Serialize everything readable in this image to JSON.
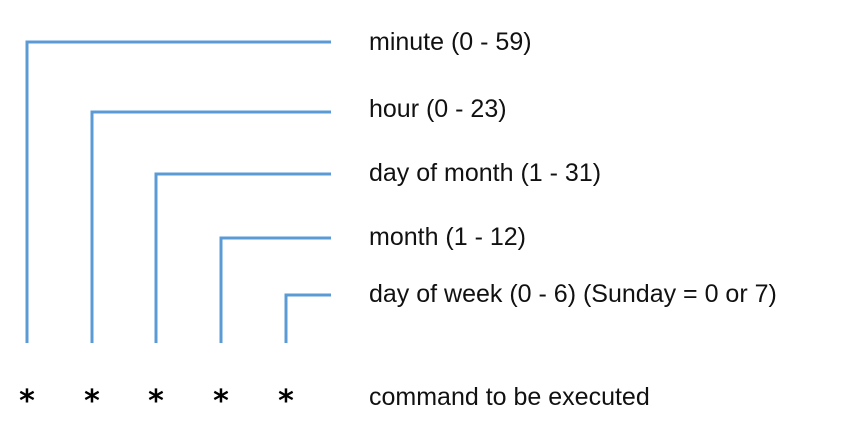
{
  "line_color": "#5b9bd5",
  "fields": [
    {
      "label": "minute (0 - 59)",
      "symbol": "*"
    },
    {
      "label": "hour (0 - 23)",
      "symbol": "*"
    },
    {
      "label": "day of month (1 - 31)",
      "symbol": "*"
    },
    {
      "label": "month (1 - 12)",
      "symbol": "*"
    },
    {
      "label": "day of week (0 - 6) (Sunday = 0 or 7)",
      "symbol": "*"
    }
  ],
  "command_label": "command to be executed"
}
